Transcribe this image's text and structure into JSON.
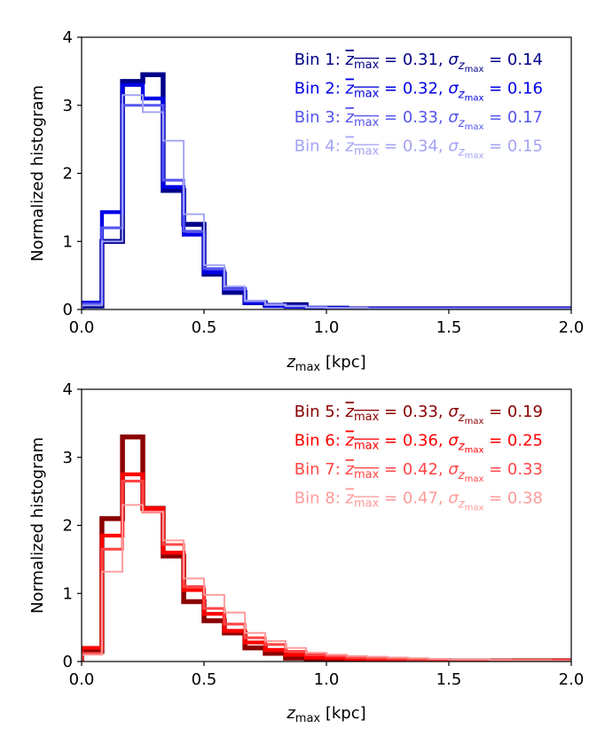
{
  "chart_data": [
    {
      "type": "histogram",
      "ylabel": "Normalized histogram",
      "xlabel": "z_max [kpc]",
      "xlabel_main": "z",
      "xlabel_sub": "max",
      "xlabel_unit": "[kpc]",
      "xlim": [
        0.0,
        2.0
      ],
      "ylim": [
        0,
        4
      ],
      "xticks": [
        "0.0",
        "0.5",
        "1.0",
        "1.5",
        "2.0"
      ],
      "yticks": [
        "0",
        "1",
        "2",
        "3",
        "4"
      ],
      "bin_edges": [
        0.0,
        0.083,
        0.167,
        0.25,
        0.333,
        0.417,
        0.5,
        0.583,
        0.667,
        0.75,
        0.833,
        0.917,
        1.0,
        1.083,
        1.167,
        1.25,
        1.333,
        1.417,
        1.5,
        1.583,
        1.667,
        1.75,
        1.833,
        1.917,
        2.0
      ],
      "legend_position": "top-right",
      "series": [
        {
          "name": "Bin 1",
          "mean": "0.31",
          "sigma": "0.14",
          "color": "#00008b",
          "values": [
            0.05,
            1.0,
            3.35,
            3.45,
            1.75,
            1.25,
            0.52,
            0.25,
            0.1,
            0.06,
            0.07,
            0.02,
            0.02,
            0.01,
            0.01,
            0.01,
            0.01,
            0.01,
            0.01,
            0.01,
            0.01,
            0.01,
            0.01,
            0.01
          ]
        },
        {
          "name": "Bin 2",
          "mean": "0.32",
          "sigma": "0.16",
          "color": "#0000e6",
          "values": [
            0.1,
            1.43,
            3.3,
            3.1,
            1.8,
            1.1,
            0.55,
            0.3,
            0.1,
            0.05,
            0.04,
            0.02,
            0.02,
            0.01,
            0.01,
            0.01,
            0.01,
            0.01,
            0.01,
            0.01,
            0.01,
            0.01,
            0.01,
            0.01
          ]
        },
        {
          "name": "Bin 3",
          "mean": "0.33",
          "sigma": "0.17",
          "color": "#5555ee",
          "values": [
            0.08,
            1.2,
            3.0,
            3.0,
            1.9,
            1.15,
            0.6,
            0.3,
            0.12,
            0.07,
            0.05,
            0.03,
            0.02,
            0.02,
            0.01,
            0.01,
            0.01,
            0.01,
            0.01,
            0.01,
            0.01,
            0.01,
            0.01,
            0.01
          ]
        },
        {
          "name": "Bin 4",
          "mean": "0.34",
          "sigma": "0.15",
          "color": "#a3a3f5",
          "values": [
            0.06,
            1.0,
            3.15,
            2.9,
            2.48,
            1.4,
            0.65,
            0.34,
            0.13,
            0.07,
            0.05,
            0.03,
            0.02,
            0.02,
            0.01,
            0.01,
            0.01,
            0.01,
            0.01,
            0.01,
            0.01,
            0.01,
            0.01,
            0.01
          ]
        }
      ]
    },
    {
      "type": "histogram",
      "ylabel": "Normalized histogram",
      "xlabel": "z_max [kpc]",
      "xlabel_main": "z",
      "xlabel_sub": "max",
      "xlabel_unit": "[kpc]",
      "xlim": [
        0.0,
        2.0
      ],
      "ylim": [
        0,
        4
      ],
      "xticks": [
        "0.0",
        "0.5",
        "1.0",
        "1.5",
        "2.0"
      ],
      "yticks": [
        "0",
        "1",
        "2",
        "3",
        "4"
      ],
      "bin_edges": [
        0.0,
        0.083,
        0.167,
        0.25,
        0.333,
        0.417,
        0.5,
        0.583,
        0.667,
        0.75,
        0.833,
        0.917,
        1.0,
        1.083,
        1.167,
        1.25,
        1.333,
        1.417,
        1.5,
        1.583,
        1.667,
        1.75,
        1.833,
        1.917,
        2.0
      ],
      "legend_position": "top-right",
      "series": [
        {
          "name": "Bin 5",
          "mean": "0.33",
          "sigma": "0.19",
          "color": "#8b0000",
          "values": [
            0.15,
            2.1,
            3.3,
            2.25,
            1.55,
            0.88,
            0.6,
            0.42,
            0.2,
            0.12,
            0.05,
            0.04,
            0.03,
            0.02,
            0.02,
            0.01,
            0.01,
            0.01,
            0.01,
            0.01,
            0.01,
            0.01,
            0.01,
            0.01
          ]
        },
        {
          "name": "Bin 6",
          "mean": "0.36",
          "sigma": "0.25",
          "color": "#ff0000",
          "values": [
            0.2,
            1.85,
            2.75,
            2.25,
            1.6,
            1.05,
            0.7,
            0.45,
            0.28,
            0.17,
            0.1,
            0.06,
            0.05,
            0.04,
            0.03,
            0.03,
            0.02,
            0.02,
            0.01,
            0.01,
            0.01,
            0.01,
            0.01,
            0.01
          ]
        },
        {
          "name": "Bin 7",
          "mean": "0.42",
          "sigma": "0.33",
          "color": "#ff4545",
          "values": [
            0.12,
            1.65,
            2.65,
            2.2,
            1.72,
            1.1,
            0.78,
            0.55,
            0.35,
            0.25,
            0.15,
            0.1,
            0.08,
            0.06,
            0.05,
            0.04,
            0.03,
            0.03,
            0.02,
            0.02,
            0.02,
            0.01,
            0.01,
            0.01
          ]
        },
        {
          "name": "Bin 8",
          "mean": "0.47",
          "sigma": "0.38",
          "color": "#ff9a9a",
          "values": [
            0.1,
            1.32,
            2.3,
            2.2,
            1.78,
            1.22,
            0.98,
            0.72,
            0.42,
            0.3,
            0.2,
            0.13,
            0.1,
            0.08,
            0.07,
            0.06,
            0.05,
            0.04,
            0.03,
            0.03,
            0.02,
            0.02,
            0.02,
            0.01
          ]
        }
      ]
    }
  ]
}
